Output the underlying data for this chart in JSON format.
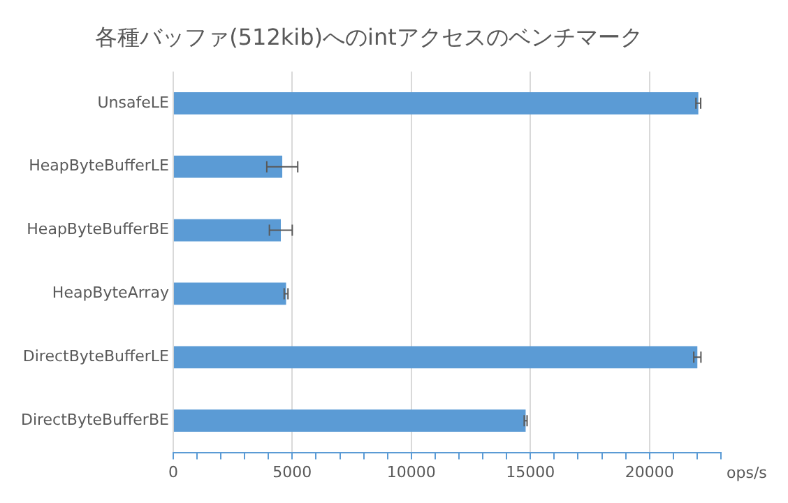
{
  "chart_data": {
    "type": "bar",
    "orientation": "horizontal",
    "title": "各種バッファ(512kib)へのintアクセスのベンチマーク",
    "xlabel": "ops/s",
    "categories": [
      "UnsafeLE",
      "HeapByteBufferLE",
      "HeapByteBufferBE",
      "HeapByteArray",
      "DirectByteBufferLE",
      "DirectByteBufferBE"
    ],
    "values": [
      22050,
      4580,
      4520,
      4740,
      22010,
      14800
    ],
    "errors": [
      100,
      650,
      [
        4040,
        5000
      ],
      80,
      150,
      60
    ],
    "color": "#5b9bd5",
    "xlim": [
      0,
      23000
    ],
    "xticks": [
      0,
      {
        "value": 1000,
        "label": null
      },
      {
        "value": 2000,
        "label": null
      },
      {
        "value": 3000,
        "label": null
      },
      {
        "value": 4000,
        "label": null
      },
      5000,
      {
        "value": 6000,
        "label": null
      },
      {
        "value": 7000,
        "label": null
      },
      {
        "value": 8000,
        "label": null
      },
      {
        "value": 9000,
        "label": null
      },
      10000,
      {
        "value": 11000,
        "label": null
      },
      {
        "value": 12000,
        "label": null
      },
      {
        "value": 13000,
        "label": null
      },
      {
        "value": 14000,
        "label": null
      },
      15000,
      {
        "value": 16000,
        "label": null
      },
      {
        "value": 17000,
        "label": null
      },
      {
        "value": 18000,
        "label": null
      },
      {
        "value": 19000,
        "label": null
      },
      20000,
      {
        "value": 21000,
        "label": null
      },
      {
        "value": 22000,
        "label": null
      },
      {
        "value": 23000,
        "label": null
      }
    ],
    "grid": "x",
    "legend": false
  }
}
